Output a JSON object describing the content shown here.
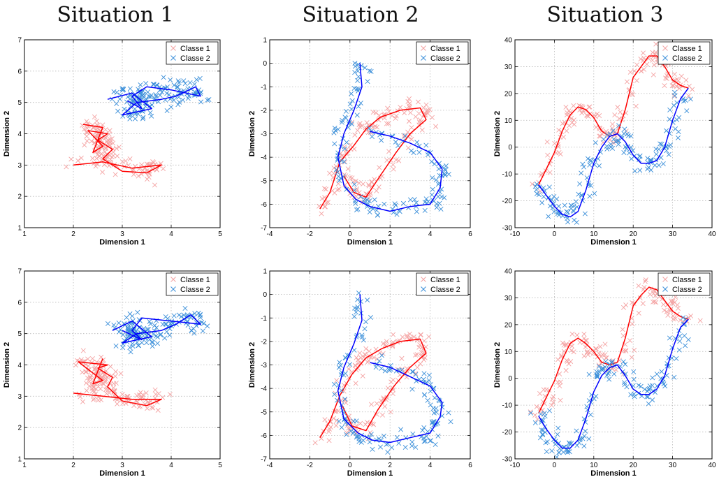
{
  "titles": [
    "Situation 1",
    "Situation 2",
    "Situation 3"
  ],
  "colors": {
    "class1_marker": "#f4a3a3",
    "class1_line": "#ff0000",
    "class2_marker": "#3b8fd9",
    "class2_line": "#0000ff"
  },
  "chart_data": [
    {
      "type": "scatter",
      "situation": 1,
      "row": 1,
      "xlabel": "Dimension 1",
      "ylabel": "Dimension 2",
      "xlim": [
        1,
        5
      ],
      "ylim": [
        1,
        7
      ],
      "xticks": [
        1,
        2,
        3,
        4,
        5
      ],
      "yticks": [
        1,
        2,
        3,
        4,
        5,
        6,
        7
      ],
      "grid": true,
      "legend": "top-right",
      "series": [
        {
          "name": "Classe 1",
          "marker": "x",
          "path": [
            [
              2.0,
              3.0
            ],
            [
              2.6,
              3.1
            ],
            [
              3.2,
              2.9
            ],
            [
              3.8,
              3.0
            ],
            [
              3.5,
              2.75
            ],
            [
              3.0,
              2.8
            ],
            [
              2.6,
              3.2
            ],
            [
              2.8,
              3.5
            ],
            [
              2.5,
              3.8
            ],
            [
              2.7,
              4.0
            ],
            [
              2.3,
              4.1
            ],
            [
              2.6,
              3.6
            ],
            [
              2.4,
              3.4
            ],
            [
              2.6,
              4.2
            ],
            [
              2.2,
              4.3
            ]
          ]
        },
        {
          "name": "Classe 2",
          "marker": "x",
          "path": [
            [
              2.7,
              5.1
            ],
            [
              3.2,
              5.3
            ],
            [
              3.6,
              4.8
            ],
            [
              3.0,
              4.6
            ],
            [
              3.3,
              5.0
            ],
            [
              3.8,
              5.1
            ],
            [
              4.1,
              5.2
            ],
            [
              4.5,
              5.5
            ],
            [
              4.6,
              5.2
            ],
            [
              4.0,
              5.4
            ],
            [
              3.5,
              5.5
            ],
            [
              3.2,
              5.2
            ],
            [
              3.4,
              4.8
            ],
            [
              3.1,
              5.05
            ]
          ]
        }
      ]
    },
    {
      "type": "scatter",
      "situation": 2,
      "row": 1,
      "xlabel": "Dimension 1",
      "ylabel": "Dimension 2",
      "xlim": [
        -4,
        6
      ],
      "ylim": [
        -7,
        1
      ],
      "xticks": [
        -4,
        -2,
        0,
        2,
        4,
        6
      ],
      "yticks": [
        -7,
        -6,
        -5,
        -4,
        -3,
        -2,
        -1,
        0,
        1
      ],
      "grid": true,
      "legend": "top-right",
      "series": [
        {
          "name": "Classe 1",
          "marker": "x",
          "path": [
            [
              -1.5,
              -6.2
            ],
            [
              -1.0,
              -5.5
            ],
            [
              -0.5,
              -4.2
            ],
            [
              0.2,
              -3.5
            ],
            [
              0.8,
              -2.8
            ],
            [
              1.5,
              -2.3
            ],
            [
              2.5,
              -2.0
            ],
            [
              3.5,
              -1.9
            ],
            [
              3.8,
              -2.4
            ],
            [
              3.0,
              -3.0
            ],
            [
              2.3,
              -3.8
            ],
            [
              1.5,
              -4.8
            ],
            [
              0.8,
              -5.7
            ],
            [
              0.2,
              -5.5
            ],
            [
              -0.3,
              -4.8
            ]
          ]
        },
        {
          "name": "Classe 2",
          "marker": "x",
          "path": [
            [
              0.5,
              0.0
            ],
            [
              0.6,
              -1.0
            ],
            [
              0.2,
              -2.0
            ],
            [
              -0.3,
              -3.0
            ],
            [
              -0.6,
              -4.0
            ],
            [
              -0.3,
              -5.2
            ],
            [
              0.3,
              -5.8
            ],
            [
              1.0,
              -6.1
            ],
            [
              2.0,
              -6.3
            ],
            [
              3.0,
              -6.1
            ],
            [
              4.0,
              -6.0
            ],
            [
              4.5,
              -5.3
            ],
            [
              4.6,
              -4.5
            ],
            [
              4.0,
              -3.8
            ],
            [
              3.0,
              -3.4
            ],
            [
              2.0,
              -3.1
            ],
            [
              1.0,
              -2.9
            ]
          ]
        }
      ]
    },
    {
      "type": "scatter",
      "situation": 3,
      "row": 1,
      "xlabel": "Dimension 1",
      "ylabel": "Dimension 2",
      "xlim": [
        -10,
        40
      ],
      "ylim": [
        -30,
        40
      ],
      "xticks": [
        -10,
        0,
        10,
        20,
        30,
        40
      ],
      "yticks": [
        -30,
        -20,
        -10,
        0,
        10,
        20,
        30,
        40
      ],
      "grid": true,
      "legend": "top-right",
      "series": [
        {
          "name": "Classe 1",
          "marker": "x",
          "path": [
            [
              -4,
              -14
            ],
            [
              -2,
              -8
            ],
            [
              0,
              -2
            ],
            [
              2,
              6
            ],
            [
              4,
              12
            ],
            [
              6,
              15
            ],
            [
              8,
              14
            ],
            [
              10,
              11
            ],
            [
              12,
              6
            ],
            [
              14,
              4
            ],
            [
              16,
              5
            ],
            [
              18,
              14
            ],
            [
              20,
              26
            ],
            [
              22,
              30
            ],
            [
              24,
              34
            ],
            [
              26,
              34
            ],
            [
              28,
              30
            ],
            [
              30,
              25
            ],
            [
              32,
              23
            ],
            [
              34,
              22
            ]
          ]
        },
        {
          "name": "Classe 2",
          "marker": "x",
          "path": [
            [
              -4,
              -14
            ],
            [
              -2,
              -18
            ],
            [
              0,
              -22
            ],
            [
              2,
              -25
            ],
            [
              4,
              -26
            ],
            [
              6,
              -24
            ],
            [
              8,
              -16
            ],
            [
              10,
              -6
            ],
            [
              12,
              0
            ],
            [
              14,
              4
            ],
            [
              16,
              5
            ],
            [
              18,
              2
            ],
            [
              20,
              -3
            ],
            [
              22,
              -6
            ],
            [
              24,
              -6
            ],
            [
              26,
              -5
            ],
            [
              28,
              0
            ],
            [
              30,
              10
            ],
            [
              32,
              18
            ],
            [
              34,
              22
            ]
          ]
        }
      ]
    },
    {
      "type": "scatter",
      "situation": 1,
      "row": 2,
      "xlabel": "Dimension 1",
      "ylabel": "Dimension 2",
      "xlim": [
        1,
        5
      ],
      "ylim": [
        1,
        7
      ],
      "xticks": [
        1,
        2,
        3,
        4,
        5
      ],
      "yticks": [
        1,
        2,
        3,
        4,
        5,
        6,
        7
      ],
      "grid": true,
      "legend": "top-right",
      "series": [
        {
          "name": "Classe 1",
          "marker": "x",
          "path": [
            [
              2.0,
              3.1
            ],
            [
              2.6,
              3.0
            ],
            [
              3.2,
              2.9
            ],
            [
              3.8,
              2.9
            ],
            [
              3.5,
              2.7
            ],
            [
              3.0,
              2.85
            ],
            [
              2.7,
              3.3
            ],
            [
              2.8,
              3.6
            ],
            [
              2.5,
              3.9
            ],
            [
              2.7,
              4.0
            ],
            [
              2.1,
              4.1
            ],
            [
              2.6,
              3.5
            ],
            [
              2.4,
              3.4
            ],
            [
              2.6,
              4.2
            ]
          ]
        },
        {
          "name": "Classe 2",
          "marker": "x",
          "path": [
            [
              2.8,
              5.1
            ],
            [
              3.2,
              5.4
            ],
            [
              3.6,
              4.9
            ],
            [
              3.0,
              4.7
            ],
            [
              3.3,
              5.0
            ],
            [
              3.8,
              5.1
            ],
            [
              4.1,
              5.3
            ],
            [
              4.4,
              5.6
            ],
            [
              4.6,
              5.3
            ],
            [
              4.0,
              5.4
            ],
            [
              3.4,
              5.5
            ],
            [
              3.2,
              5.1
            ],
            [
              3.4,
              4.8
            ],
            [
              3.0,
              5.1
            ]
          ]
        }
      ]
    },
    {
      "type": "scatter",
      "situation": 2,
      "row": 2,
      "xlabel": "Dimension 1",
      "ylabel": "Dimension 2",
      "xlim": [
        -4,
        6
      ],
      "ylim": [
        -7,
        1
      ],
      "xticks": [
        -4,
        -2,
        0,
        2,
        4,
        6
      ],
      "yticks": [
        -7,
        -6,
        -5,
        -4,
        -3,
        -2,
        -1,
        0,
        1
      ],
      "grid": true,
      "legend": "top-right",
      "series": [
        {
          "name": "Classe 1",
          "marker": "x",
          "path": [
            [
              -1.5,
              -6.1
            ],
            [
              -1.0,
              -5.4
            ],
            [
              -0.5,
              -4.3
            ],
            [
              0.1,
              -3.4
            ],
            [
              0.8,
              -2.7
            ],
            [
              1.6,
              -2.3
            ],
            [
              2.5,
              -2.0
            ],
            [
              3.5,
              -1.9
            ],
            [
              3.8,
              -2.5
            ],
            [
              3.0,
              -3.1
            ],
            [
              2.2,
              -3.9
            ],
            [
              1.4,
              -4.9
            ],
            [
              0.8,
              -5.8
            ],
            [
              0.1,
              -5.6
            ],
            [
              -0.4,
              -4.7
            ]
          ]
        },
        {
          "name": "Classe 2",
          "marker": "x",
          "path": [
            [
              0.5,
              0.0
            ],
            [
              0.6,
              -1.1
            ],
            [
              0.2,
              -2.1
            ],
            [
              -0.3,
              -3.1
            ],
            [
              -0.6,
              -4.1
            ],
            [
              -0.3,
              -5.3
            ],
            [
              0.4,
              -5.9
            ],
            [
              1.1,
              -6.2
            ],
            [
              2.0,
              -6.3
            ],
            [
              3.0,
              -6.1
            ],
            [
              4.0,
              -5.9
            ],
            [
              4.5,
              -5.2
            ],
            [
              4.6,
              -4.6
            ],
            [
              4.0,
              -3.9
            ],
            [
              3.0,
              -3.5
            ],
            [
              2.0,
              -3.1
            ],
            [
              1.0,
              -2.9
            ]
          ]
        }
      ]
    },
    {
      "type": "scatter",
      "situation": 3,
      "row": 2,
      "xlabel": "Dimension 1",
      "ylabel": "Dimension 2",
      "xlim": [
        -10,
        40
      ],
      "ylim": [
        -30,
        40
      ],
      "xticks": [
        -10,
        0,
        10,
        20,
        30,
        40
      ],
      "yticks": [
        -30,
        -20,
        -10,
        0,
        10,
        20,
        30,
        40
      ],
      "grid": true,
      "legend": "top-right",
      "series": [
        {
          "name": "Classe 1",
          "marker": "x",
          "path": [
            [
              -4,
              -13
            ],
            [
              -2,
              -7
            ],
            [
              0,
              -1
            ],
            [
              2,
              7
            ],
            [
              4,
              13
            ],
            [
              6,
              15
            ],
            [
              8,
              13
            ],
            [
              10,
              10
            ],
            [
              12,
              6
            ],
            [
              14,
              5
            ],
            [
              16,
              6
            ],
            [
              18,
              15
            ],
            [
              20,
              27
            ],
            [
              22,
              31
            ],
            [
              24,
              34
            ],
            [
              26,
              33
            ],
            [
              28,
              29
            ],
            [
              30,
              25
            ],
            [
              32,
              23
            ],
            [
              34,
              22
            ]
          ]
        },
        {
          "name": "Classe 2",
          "marker": "x",
          "path": [
            [
              -4,
              -14
            ],
            [
              -2,
              -19
            ],
            [
              0,
              -23
            ],
            [
              2,
              -26
            ],
            [
              4,
              -26
            ],
            [
              6,
              -23
            ],
            [
              8,
              -15
            ],
            [
              10,
              -5
            ],
            [
              12,
              1
            ],
            [
              14,
              4
            ],
            [
              16,
              5
            ],
            [
              18,
              1
            ],
            [
              20,
              -4
            ],
            [
              22,
              -6
            ],
            [
              24,
              -6
            ],
            [
              26,
              -4
            ],
            [
              28,
              1
            ],
            [
              30,
              11
            ],
            [
              32,
              19
            ],
            [
              34,
              22
            ]
          ]
        }
      ]
    }
  ]
}
